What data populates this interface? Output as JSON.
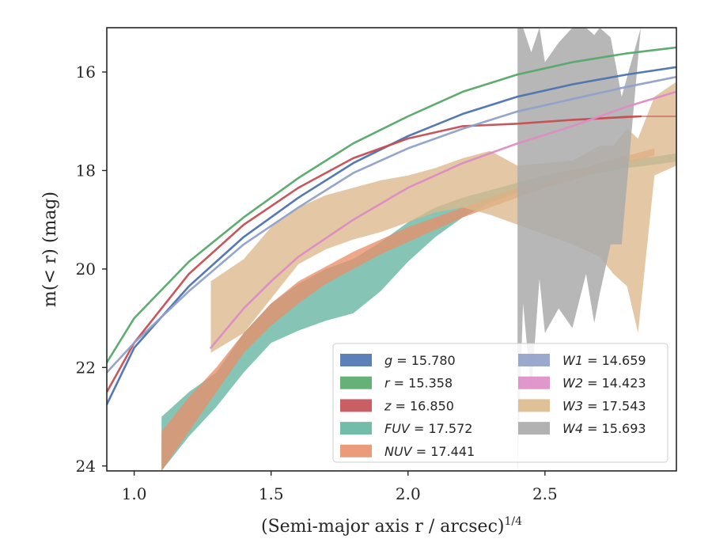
{
  "chart_data": {
    "type": "line",
    "xlabel": "(Semi-major axis r / arcsec)",
    "xlabel_exponent": "1/4",
    "ylabel": "m(< r) (mag)",
    "xlim": [
      0.9,
      2.98
    ],
    "ylim": [
      24.1,
      15.1
    ],
    "y_inverted": true,
    "grid": false,
    "legend_placement": "lower-right",
    "x_ticks": [
      1.0,
      1.5,
      2.0,
      2.5
    ],
    "x_tick_labels": [
      "1.0",
      "1.5",
      "2.0",
      "2.5"
    ],
    "y_ticks": [
      16,
      18,
      20,
      22,
      24
    ],
    "y_tick_labels": [
      "16",
      "18",
      "20",
      "22",
      "24"
    ],
    "series": [
      {
        "name": "g",
        "legend_label": "g = 15.780",
        "color": "#4c72b0",
        "kind": "line",
        "x": [
          0.9,
          1.0,
          1.2,
          1.4,
          1.6,
          1.8,
          2.0,
          2.2,
          2.4,
          2.6,
          2.8,
          2.98
        ],
        "y": [
          22.75,
          21.6,
          20.35,
          19.35,
          18.55,
          17.85,
          17.3,
          16.85,
          16.5,
          16.25,
          16.05,
          15.9
        ]
      },
      {
        "name": "r",
        "legend_label": "r = 15.358",
        "color": "#55a868",
        "kind": "line",
        "x": [
          0.9,
          1.0,
          1.2,
          1.4,
          1.6,
          1.8,
          2.0,
          2.2,
          2.4,
          2.6,
          2.8,
          2.98
        ],
        "y": [
          21.9,
          21.0,
          19.85,
          18.95,
          18.15,
          17.45,
          16.9,
          16.4,
          16.05,
          15.8,
          15.62,
          15.5
        ]
      },
      {
        "name": "z",
        "legend_label": "z = 16.850",
        "color": "#c44e52",
        "kind": "line",
        "x": [
          0.9,
          1.0,
          1.2,
          1.4,
          1.6,
          1.8,
          2.0,
          2.2,
          2.4,
          2.6,
          2.85
        ],
        "y": [
          22.5,
          21.5,
          20.1,
          19.1,
          18.35,
          17.75,
          17.35,
          17.1,
          17.05,
          16.97,
          16.9
        ]
      },
      {
        "name": "z-model",
        "color": "#c44e52",
        "kind": "line",
        "thin": true,
        "x": [
          2.6,
          2.8,
          2.98
        ],
        "y": [
          16.97,
          16.9,
          16.9
        ]
      },
      {
        "name": "FUV",
        "legend_label": "FUV = 17.572",
        "color": "#64b5a0",
        "kind": "band",
        "x": [
          1.1,
          1.2,
          1.3,
          1.4,
          1.5,
          1.6,
          1.7,
          1.8,
          1.9,
          2.0,
          2.1,
          2.2,
          2.3,
          2.4,
          2.5,
          2.6,
          2.7,
          2.8,
          2.9,
          2.98
        ],
        "y_low": [
          23.0,
          22.5,
          22.1,
          21.3,
          20.7,
          20.3,
          20.0,
          19.8,
          19.45,
          19.05,
          18.75,
          18.55,
          18.4,
          18.25,
          18.1,
          17.98,
          17.9,
          17.8,
          17.72,
          17.65
        ],
        "y_high": [
          24.1,
          23.4,
          22.8,
          22.1,
          21.5,
          21.25,
          21.05,
          20.9,
          20.45,
          19.85,
          19.35,
          18.95,
          18.65,
          18.45,
          18.3,
          18.15,
          18.05,
          17.95,
          17.88,
          17.82
        ]
      },
      {
        "name": "NUV",
        "legend_label": "NUV = 17.441",
        "color": "#e8906a",
        "kind": "band",
        "x": [
          1.1,
          1.2,
          1.3,
          1.4,
          1.5,
          1.6,
          1.7,
          1.8,
          1.9,
          2.0,
          2.1,
          2.2,
          2.3,
          2.4,
          2.5,
          2.6,
          2.7,
          2.8,
          2.9
        ],
        "y_low": [
          23.3,
          22.6,
          22.0,
          21.3,
          20.7,
          20.25,
          19.95,
          19.65,
          19.4,
          19.15,
          18.95,
          18.75,
          18.55,
          18.35,
          18.2,
          18.0,
          17.85,
          17.7,
          17.55
        ],
        "y_high": [
          24.1,
          23.3,
          22.5,
          21.7,
          21.15,
          20.7,
          20.3,
          20.0,
          19.7,
          19.45,
          19.2,
          18.95,
          18.75,
          18.55,
          18.35,
          18.2,
          18.0,
          17.85,
          17.7
        ]
      },
      {
        "name": "W3",
        "legend_label": "W3 = 17.543",
        "color": "#ddb98c",
        "kind": "band",
        "x": [
          1.28,
          1.4,
          1.5,
          1.6,
          1.7,
          1.8,
          1.9,
          2.0,
          2.1,
          2.2,
          2.3,
          2.4,
          2.5,
          2.6,
          2.7,
          2.75,
          2.8,
          2.84,
          2.9,
          2.98
        ],
        "y_low": [
          20.25,
          19.8,
          19.15,
          18.75,
          18.5,
          18.35,
          18.2,
          18.1,
          17.95,
          17.75,
          17.6,
          17.9,
          17.85,
          17.8,
          17.5,
          17.5,
          17.15,
          17.35,
          16.5,
          16.2
        ],
        "y_high": [
          21.7,
          21.3,
          20.6,
          19.9,
          19.6,
          19.4,
          19.25,
          19.05,
          18.85,
          18.75,
          18.9,
          19.1,
          19.3,
          19.5,
          19.75,
          20.1,
          20.35,
          21.3,
          18.1,
          17.9
        ]
      },
      {
        "name": "W1",
        "legend_label": "W1 = 14.659",
        "color": "#8fa0c8",
        "kind": "line",
        "x": [
          0.9,
          1.0,
          1.2,
          1.4,
          1.6,
          1.8,
          2.0,
          2.2,
          2.4,
          2.6,
          2.8,
          2.98
        ],
        "y": [
          22.1,
          21.5,
          20.45,
          19.5,
          18.75,
          18.05,
          17.55,
          17.15,
          16.8,
          16.55,
          16.3,
          16.1
        ]
      },
      {
        "name": "W2",
        "legend_label": "W2 = 14.423",
        "color": "#dd8cc3",
        "kind": "line",
        "x": [
          1.28,
          1.4,
          1.5,
          1.6,
          1.8,
          2.0,
          2.2,
          2.4,
          2.6,
          2.8,
          2.98
        ],
        "y": [
          21.6,
          20.8,
          20.25,
          19.75,
          19.0,
          18.35,
          17.85,
          17.45,
          17.1,
          16.7,
          16.4
        ]
      },
      {
        "name": "W4",
        "legend_label": "W4 = 15.693",
        "color": "#aaaaaa",
        "kind": "band",
        "x": [
          2.4,
          2.42,
          2.45,
          2.48,
          2.5,
          2.55,
          2.6,
          2.65,
          2.68,
          2.7,
          2.74,
          2.78,
          2.85
        ],
        "y_low": [
          15.1,
          15.1,
          15.6,
          15.1,
          15.8,
          15.4,
          15.1,
          15.1,
          15.25,
          15.1,
          15.3,
          16.5,
          15.1
        ],
        "y_high": [
          24.1,
          20.7,
          22.5,
          20.2,
          21.3,
          20.8,
          21.2,
          20.1,
          21.1,
          20.5,
          19.5,
          19.5,
          15.1
        ]
      }
    ],
    "legend": [
      {
        "label": "g = 15.780",
        "color": "#4c72b0"
      },
      {
        "label": "r = 15.358",
        "color": "#55a868"
      },
      {
        "label": "z = 16.850",
        "color": "#c44e52"
      },
      {
        "label": "FUV = 17.572",
        "color": "#64b5a0"
      },
      {
        "label": "NUV = 17.441",
        "color": "#e8906a"
      },
      {
        "label": "W1 = 14.659",
        "color": "#8fa0c8"
      },
      {
        "label": "W2 = 14.423",
        "color": "#dd8cc3"
      },
      {
        "label": "W3 = 17.543",
        "color": "#ddb98c"
      },
      {
        "label": "W4 = 15.693",
        "color": "#aaaaaa"
      }
    ]
  }
}
